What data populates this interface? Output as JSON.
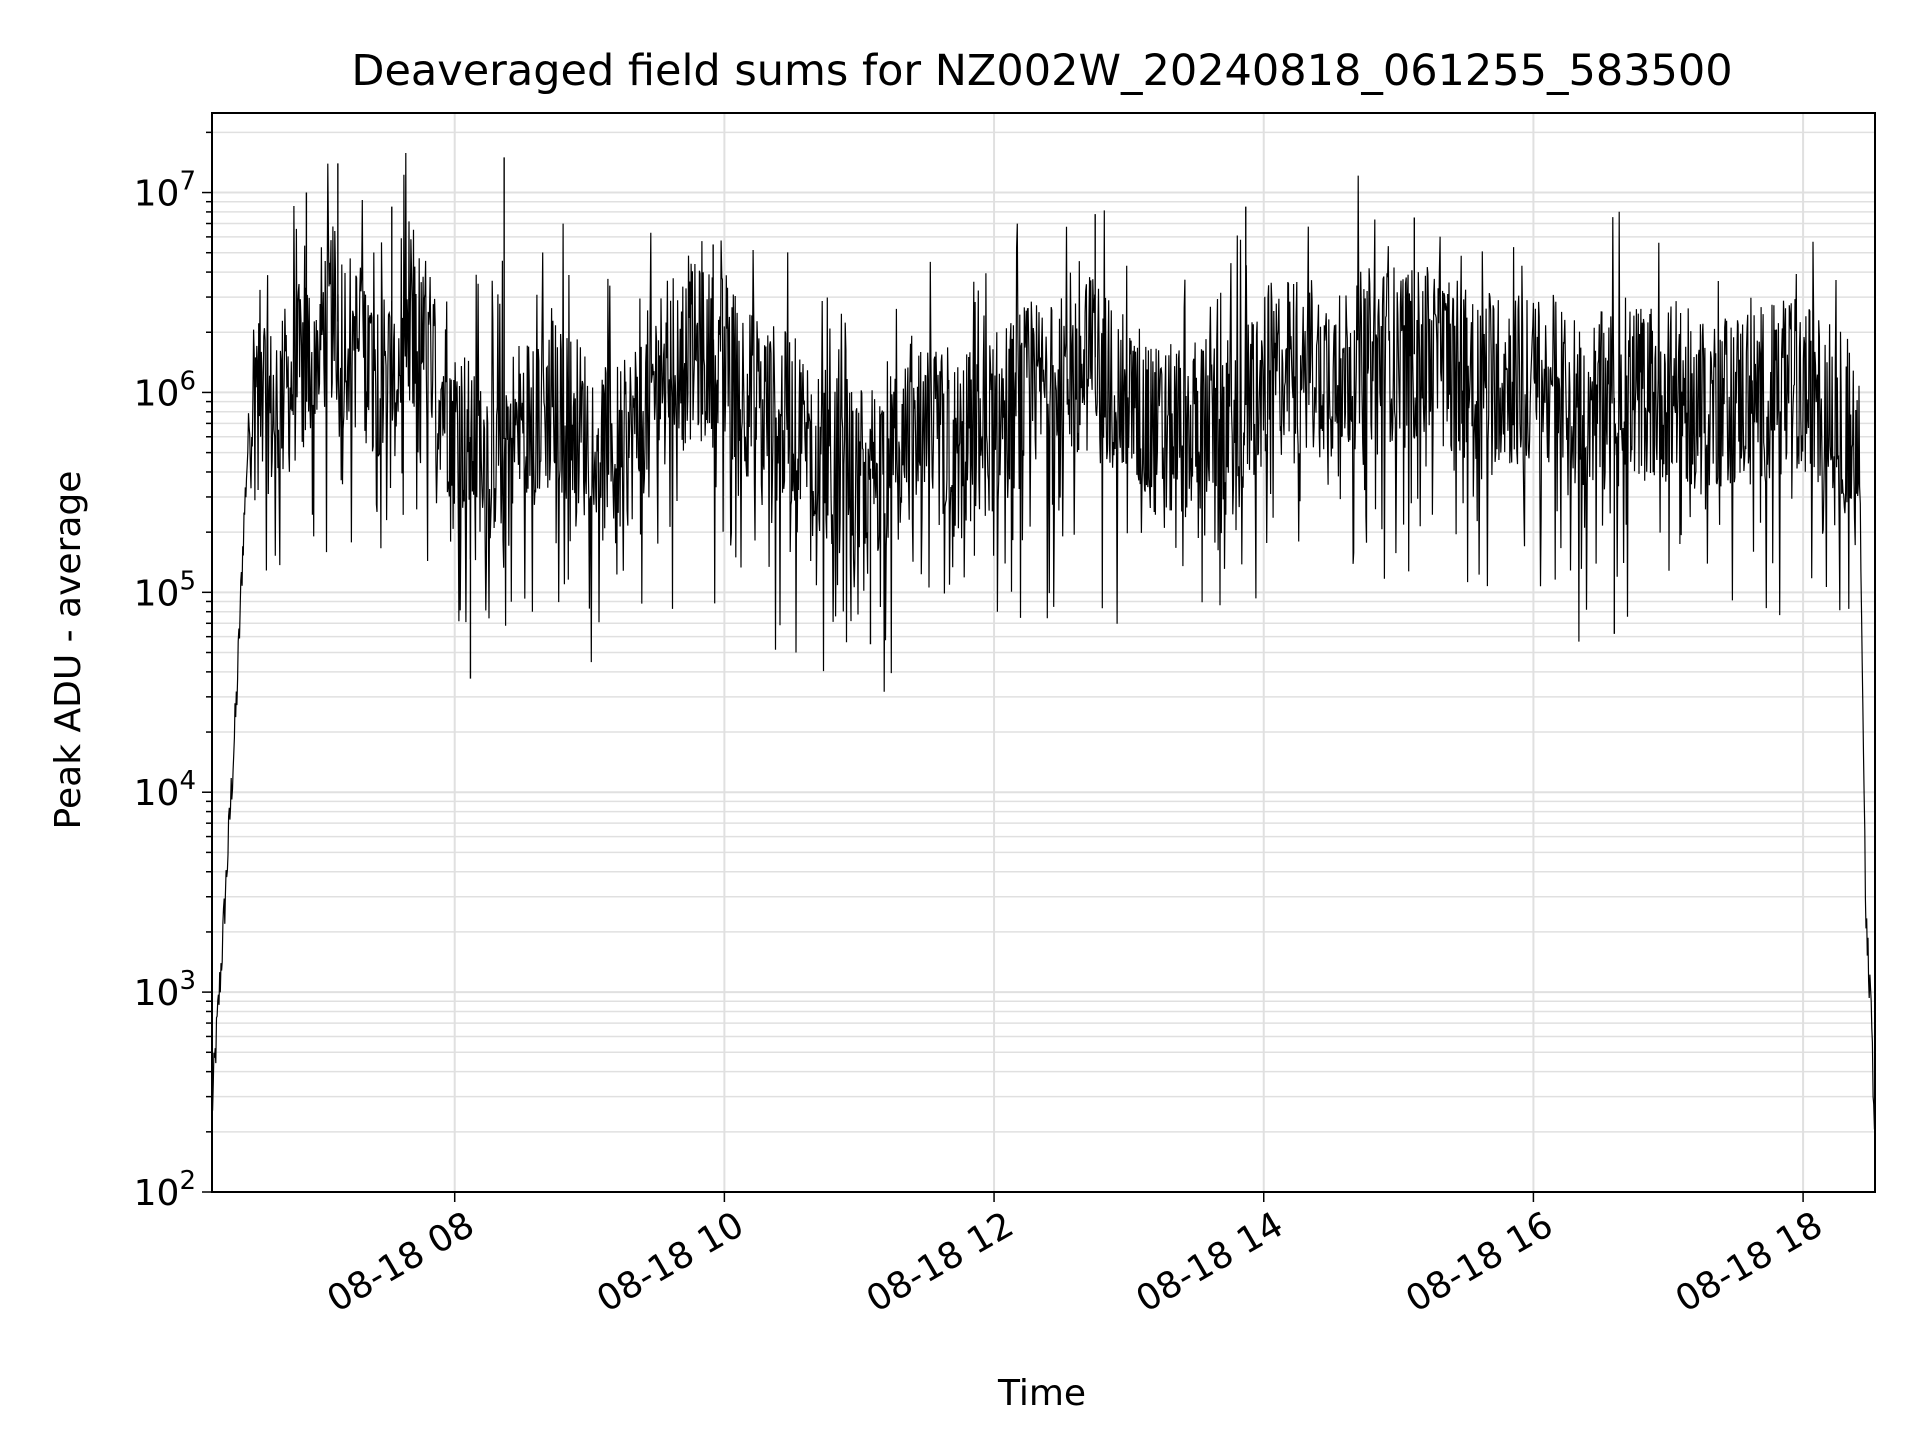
{
  "chart_data": {
    "type": "line",
    "title": "Deaveraged field sums for NZ002W_20240818_061255_583500",
    "xlabel": "Time",
    "ylabel": "Peak ADU - average",
    "yscale": "log",
    "ylim": [
      100,
      25000000
    ],
    "xlim": [
      "2024-08-18 06:12",
      "2024-08-18 18:32"
    ],
    "grid": true,
    "line_color": "#000000",
    "grid_color": "#e0e0e0",
    "x_ticks": [
      "08-18 08",
      "08-18 10",
      "08-18 12",
      "08-18 14",
      "08-18 16",
      "08-18 18"
    ],
    "y_ticks": [
      {
        "base": "10",
        "exp": "2"
      },
      {
        "base": "10",
        "exp": "3"
      },
      {
        "base": "10",
        "exp": "4"
      },
      {
        "base": "10",
        "exp": "5"
      },
      {
        "base": "10",
        "exp": "6"
      },
      {
        "base": "10",
        "exp": "7"
      }
    ],
    "series": [
      {
        "x": [
          "2024-08-18 06:12",
          "2024-08-18 06:13",
          "2024-08-18 06:15",
          "2024-08-18 06:17",
          "2024-08-18 06:19",
          "2024-08-18 06:21",
          "2024-08-18 06:23",
          "2024-08-18 06:26",
          "2024-08-18 06:29",
          "2024-08-18 06:33",
          "2024-08-18 06:38",
          "2024-08-18 06:45",
          "2024-08-18 06:55",
          "2024-08-18 07:05",
          "2024-08-18 07:15",
          "2024-08-18 07:30",
          "2024-08-18 07:45",
          "2024-08-18 08:00",
          "2024-08-18 08:15",
          "2024-08-18 08:30",
          "2024-08-18 08:45",
          "2024-08-18 09:00",
          "2024-08-18 09:15",
          "2024-08-18 09:30",
          "2024-08-18 09:45",
          "2024-08-18 10:00",
          "2024-08-18 10:15",
          "2024-08-18 10:30",
          "2024-08-18 10:45",
          "2024-08-18 11:00",
          "2024-08-18 11:15",
          "2024-08-18 11:30",
          "2024-08-18 11:45",
          "2024-08-18 12:00",
          "2024-08-18 12:15",
          "2024-08-18 12:30",
          "2024-08-18 12:45",
          "2024-08-18 13:00",
          "2024-08-18 13:15",
          "2024-08-18 13:30",
          "2024-08-18 13:45",
          "2024-08-18 14:00",
          "2024-08-18 14:15",
          "2024-08-18 14:30",
          "2024-08-18 14:45",
          "2024-08-18 15:00",
          "2024-08-18 15:15",
          "2024-08-18 15:30",
          "2024-08-18 15:45",
          "2024-08-18 16:00",
          "2024-08-18 16:15",
          "2024-08-18 16:30",
          "2024-08-18 16:45",
          "2024-08-18 17:00",
          "2024-08-18 17:15",
          "2024-08-18 17:30",
          "2024-08-18 17:45",
          "2024-08-18 18:00",
          "2024-08-18 18:15",
          "2024-08-18 18:25",
          "2024-08-18 18:28",
          "2024-08-18 18:30",
          "2024-08-18 18:32"
        ],
        "y": [
          250,
          400,
          900,
          2000,
          5000,
          12000,
          30000,
          200000,
          900000,
          1200000,
          800000,
          1000000,
          1500000,
          2500000,
          1800000,
          1200000,
          2000000,
          700000,
          500000,
          700000,
          900000,
          600000,
          500000,
          1200000,
          1600000,
          1400000,
          900000,
          700000,
          500000,
          400000,
          450000,
          600000,
          550000,
          700000,
          1000000,
          1100000,
          1500000,
          800000,
          600000,
          700000,
          650000,
          1200000,
          1400000,
          1300000,
          1500000,
          1600000,
          1500000,
          1300000,
          1200000,
          1100000,
          1000000,
          900000,
          1000000,
          1000000,
          900000,
          950000,
          1000000,
          1000000,
          800000,
          500000,
          2000,
          1000,
          200
        ],
        "spikes": [
          {
            "x": "2024-08-18 06:54",
            "y": 10000000
          },
          {
            "x": "2024-08-18 07:08",
            "y": 14000000
          },
          {
            "x": "2024-08-18 07:32",
            "y": 8500000
          },
          {
            "x": "2024-08-18 08:07",
            "y": 37000
          },
          {
            "x": "2024-08-18 08:22",
            "y": 15000000
          },
          {
            "x": "2024-08-18 09:55",
            "y": 5500000
          },
          {
            "x": "2024-08-18 11:05",
            "y": 55000
          },
          {
            "x": "2024-08-18 12:45",
            "y": 7800000
          },
          {
            "x": "2024-08-18 13:52",
            "y": 8500000
          },
          {
            "x": "2024-08-18 15:07",
            "y": 7500000
          },
          {
            "x": "2024-08-18 16:36",
            "y": 62000
          }
        ]
      }
    ]
  }
}
